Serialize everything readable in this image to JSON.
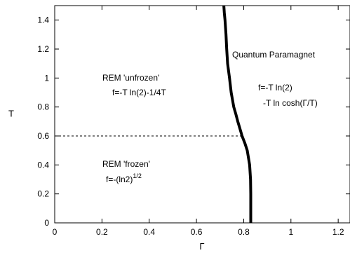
{
  "chart_data": {
    "type": "line",
    "xlabel": "Γ",
    "ylabel": "T",
    "xlim": [
      0,
      1.25
    ],
    "ylim": [
      0,
      1.5
    ],
    "xticks": [
      "0",
      "0.2",
      "0.4",
      "0.6",
      "0.8",
      "1",
      "1.2"
    ],
    "xtick_values": [
      0,
      0.2,
      0.4,
      0.6,
      0.8,
      1.0,
      1.2
    ],
    "yticks": [
      "0",
      "0.2",
      "0.4",
      "0.6",
      "0.8",
      "1",
      "1.2",
      "1.4"
    ],
    "ytick_values": [
      0,
      0.2,
      0.4,
      0.6,
      0.8,
      1.0,
      1.2,
      1.4
    ],
    "series": [
      {
        "style": "solid-thick",
        "color": "#000000",
        "x": [
          0.83,
          0.83,
          0.829,
          0.825,
          0.815,
          0.805,
          0.793,
          0.784,
          0.775,
          0.767,
          0.758,
          0.747,
          0.74,
          0.732,
          0.728,
          0.725,
          0.721,
          0.718,
          0.716
        ],
        "y": [
          0.0,
          0.2,
          0.3,
          0.4,
          0.5,
          0.55,
          0.6,
          0.65,
          0.7,
          0.75,
          0.8,
          0.9,
          1.0,
          1.1,
          1.2,
          1.3,
          1.4,
          1.45,
          1.5
        ]
      },
      {
        "style": "dashed",
        "color": "#000000",
        "x": [
          0.0,
          0.793
        ],
        "y": [
          0.6,
          0.6
        ]
      }
    ],
    "annotations": {
      "rem_unfrozen_title": "REM 'unfrozen'",
      "rem_unfrozen_formula": "f=-T ln(2)-1/4T",
      "rem_frozen_title": "REM 'frozen'",
      "rem_frozen_formula_base": "f=-(ln2)",
      "rem_frozen_formula_exp": "1/2",
      "qp_title": "Quantum Paramagnet",
      "qp_formula_line1": "f=-T ln(2)",
      "qp_formula_line2": "-T ln cosh(Γ/T)"
    }
  }
}
